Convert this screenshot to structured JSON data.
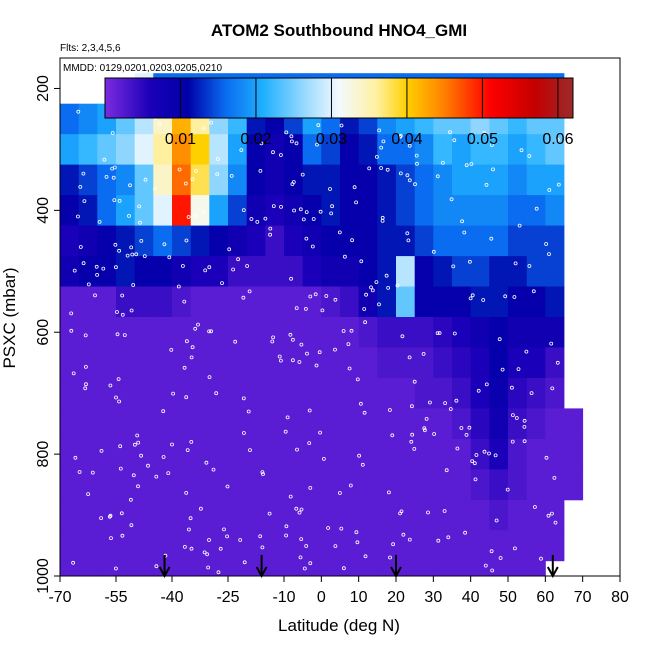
{
  "chart_data": {
    "type": "heatmap",
    "title": "ATOM2 Southbound HNO4_GMI",
    "flights_note": "Flts: 2,3,4,5,6",
    "dates_note": "MMDD: 0129,0201,0203,0205,0210",
    "xlabel": "Latitude (deg N)",
    "ylabel": "PSXC (mbar)",
    "xlim": [
      -70,
      80
    ],
    "ylim": [
      1000,
      150
    ],
    "y_reversed": true,
    "x_ticks": [
      -70,
      -55,
      -40,
      -25,
      -10,
      0,
      10,
      20,
      30,
      40,
      50,
      60,
      70,
      80
    ],
    "x_tick_labels": [
      "-70",
      "-55",
      "-40",
      "-25",
      "-10",
      "0",
      "10",
      "20",
      "30",
      "40",
      "50",
      "60",
      "70",
      "80"
    ],
    "y_ticks": [
      200,
      400,
      600,
      800,
      1000
    ],
    "y_tick_labels": [
      "200",
      "400",
      "600",
      "800",
      "1000"
    ],
    "colorbar": {
      "range": [
        0.0,
        0.062
      ],
      "ticks": [
        0.01,
        0.02,
        0.03,
        0.04,
        0.05,
        0.06
      ],
      "tick_labels": [
        "0.01",
        "0.02",
        "0.03",
        "0.04",
        "0.05",
        "0.06"
      ],
      "color_stops": [
        {
          "v": 0.0,
          "c": "#7b2be0"
        },
        {
          "v": 0.006,
          "c": "#1a00b8"
        },
        {
          "v": 0.011,
          "c": "#0000a8"
        },
        {
          "v": 0.016,
          "c": "#0a6cf0"
        },
        {
          "v": 0.021,
          "c": "#1fb0ff"
        },
        {
          "v": 0.026,
          "c": "#8fd6ff"
        },
        {
          "v": 0.031,
          "c": "#f4faff"
        },
        {
          "v": 0.036,
          "c": "#fff0a0"
        },
        {
          "v": 0.04,
          "c": "#ffd000"
        },
        {
          "v": 0.045,
          "c": "#ff7f00"
        },
        {
          "v": 0.051,
          "c": "#ff0000"
        },
        {
          "v": 0.057,
          "c": "#c40000"
        },
        {
          "v": 0.062,
          "c": "#9b2a2a"
        }
      ]
    },
    "pressure_levels": [
      200,
      250,
      300,
      350,
      400,
      450,
      500,
      550,
      600,
      650,
      700,
      750,
      800,
      850,
      900,
      950,
      1000
    ],
    "lat_bins": [
      -67.5,
      -62.5,
      -57.5,
      -52.5,
      -47.5,
      -42.5,
      -37.5,
      -32.5,
      -27.5,
      -22.5,
      -17.5,
      -12.5,
      -7.5,
      -2.5,
      2.5,
      7.5,
      12.5,
      17.5,
      22.5,
      27.5,
      32.5,
      37.5,
      42.5,
      47.5,
      52.5,
      57.5,
      62.5,
      67.5
    ],
    "values": [
      [
        null,
        null,
        null,
        null,
        0.03,
        0.016,
        0.016,
        0.016,
        0.016,
        0.016,
        0.016,
        0.016,
        0.016,
        0.016,
        0.016,
        0.016,
        0.016,
        0.016,
        0.016,
        0.016,
        0.016,
        0.016,
        0.016,
        0.016,
        0.016,
        0.016,
        0.016,
        null
      ],
      [
        0.016,
        0.018,
        0.02,
        0.024,
        0.028,
        0.034,
        0.042,
        0.036,
        0.026,
        0.022,
        0.012,
        0.01,
        0.014,
        0.02,
        0.016,
        0.012,
        0.014,
        0.018,
        0.02,
        0.022,
        0.024,
        0.024,
        0.026,
        0.024,
        0.022,
        0.024,
        0.024,
        null
      ],
      [
        0.02,
        0.022,
        0.024,
        0.026,
        0.03,
        0.036,
        0.044,
        0.04,
        0.028,
        0.02,
        0.01,
        0.008,
        0.01,
        0.016,
        0.014,
        0.01,
        0.012,
        0.016,
        0.016,
        0.018,
        0.022,
        0.02,
        0.022,
        0.022,
        0.02,
        0.022,
        0.024,
        null
      ],
      [
        0.012,
        0.014,
        0.016,
        0.018,
        0.024,
        0.034,
        0.046,
        0.038,
        0.026,
        0.018,
        0.01,
        0.008,
        0.01,
        0.012,
        0.012,
        0.01,
        0.01,
        0.012,
        0.014,
        0.016,
        0.018,
        0.02,
        0.02,
        0.02,
        0.018,
        0.02,
        0.02,
        null
      ],
      [
        0.01,
        0.012,
        0.016,
        0.02,
        0.024,
        0.03,
        0.05,
        0.032,
        0.02,
        0.014,
        0.008,
        0.006,
        0.008,
        0.01,
        0.012,
        0.01,
        0.01,
        0.012,
        0.014,
        0.016,
        0.018,
        0.018,
        0.018,
        0.018,
        0.016,
        0.016,
        0.018,
        null
      ],
      [
        0.006,
        0.008,
        0.01,
        0.012,
        0.014,
        0.016,
        0.014,
        0.012,
        0.01,
        0.008,
        0.006,
        0.004,
        0.006,
        0.008,
        0.01,
        0.01,
        0.01,
        0.012,
        0.012,
        0.014,
        0.016,
        0.016,
        0.016,
        0.016,
        0.014,
        0.014,
        0.014,
        null
      ],
      [
        0.008,
        0.01,
        0.01,
        0.012,
        0.01,
        0.01,
        0.008,
        0.006,
        0.006,
        0.004,
        0.004,
        0.004,
        0.004,
        0.006,
        0.008,
        0.008,
        0.01,
        0.012,
        0.028,
        0.01,
        0.012,
        0.014,
        0.014,
        0.012,
        0.012,
        0.014,
        0.014,
        null
      ],
      [
        0.002,
        0.002,
        0.002,
        0.004,
        0.004,
        0.004,
        0.003,
        0.002,
        0.002,
        0.002,
        0.002,
        0.002,
        0.002,
        0.002,
        0.003,
        0.004,
        0.008,
        0.012,
        0.024,
        0.01,
        0.01,
        0.01,
        0.012,
        0.012,
        0.01,
        0.01,
        0.012,
        null
      ],
      [
        0.002,
        0.002,
        0.002,
        0.002,
        0.002,
        0.002,
        0.002,
        0.002,
        0.002,
        0.002,
        0.002,
        0.002,
        0.002,
        0.002,
        0.002,
        0.002,
        0.003,
        0.004,
        0.004,
        0.004,
        0.005,
        0.006,
        0.008,
        0.01,
        0.008,
        0.008,
        0.008,
        null
      ],
      [
        0.002,
        0.002,
        0.002,
        0.002,
        0.002,
        0.002,
        0.002,
        0.002,
        0.002,
        0.002,
        0.002,
        0.002,
        0.002,
        0.002,
        0.002,
        0.002,
        0.002,
        0.003,
        0.003,
        0.003,
        0.004,
        0.005,
        0.006,
        0.01,
        0.006,
        0.006,
        0.004,
        null
      ],
      [
        0.002,
        0.002,
        0.002,
        0.002,
        0.002,
        0.002,
        0.002,
        0.002,
        0.002,
        0.002,
        0.002,
        0.002,
        0.002,
        0.002,
        0.002,
        0.002,
        0.002,
        0.002,
        0.002,
        0.003,
        0.003,
        0.004,
        0.006,
        0.009,
        0.005,
        0.004,
        0.003,
        null
      ],
      [
        0.002,
        0.002,
        0.002,
        0.002,
        0.002,
        0.002,
        0.002,
        0.002,
        0.002,
        0.002,
        0.002,
        0.002,
        0.002,
        0.002,
        0.002,
        0.002,
        0.002,
        0.002,
        0.002,
        0.002,
        0.002,
        0.003,
        0.005,
        0.008,
        0.004,
        0.003,
        0.002,
        0.002
      ],
      [
        0.002,
        0.002,
        0.002,
        0.002,
        0.002,
        0.002,
        0.002,
        0.002,
        0.002,
        0.002,
        0.002,
        0.002,
        0.002,
        0.002,
        0.002,
        0.002,
        0.002,
        0.002,
        0.002,
        0.002,
        0.002,
        0.002,
        0.004,
        0.006,
        0.003,
        0.002,
        0.002,
        0.002
      ],
      [
        0.002,
        0.002,
        0.002,
        0.002,
        0.002,
        0.002,
        0.002,
        0.002,
        0.002,
        0.002,
        0.002,
        0.002,
        0.002,
        0.002,
        0.002,
        0.002,
        0.002,
        0.002,
        0.002,
        0.002,
        0.002,
        0.002,
        0.003,
        0.004,
        0.003,
        0.002,
        0.002,
        0.002
      ],
      [
        0.002,
        0.002,
        0.002,
        0.002,
        0.002,
        0.002,
        0.002,
        0.002,
        0.002,
        0.002,
        0.002,
        0.002,
        0.002,
        0.002,
        0.002,
        0.002,
        0.002,
        0.002,
        0.002,
        0.002,
        0.002,
        0.002,
        0.002,
        0.003,
        0.002,
        0.002,
        0.002,
        null
      ],
      [
        0.002,
        0.002,
        0.002,
        0.002,
        0.002,
        0.002,
        0.002,
        0.002,
        0.002,
        0.002,
        0.002,
        0.002,
        0.002,
        0.002,
        0.002,
        0.002,
        0.002,
        0.002,
        0.002,
        0.002,
        0.002,
        0.002,
        0.002,
        0.002,
        0.002,
        0.002,
        0.002,
        null
      ],
      [
        0.002,
        0.002,
        0.002,
        0.002,
        0.002,
        0.002,
        0.002,
        0.002,
        0.002,
        0.002,
        0.002,
        0.002,
        0.002,
        0.002,
        0.002,
        0.002,
        0.002,
        0.002,
        0.002,
        0.002,
        0.002,
        0.002,
        0.002,
        0.002,
        0.002,
        0.002,
        null,
        null
      ]
    ],
    "arrows_latitude": [
      -42,
      -16,
      20,
      62
    ],
    "observation_marker_color": "#ffffff"
  }
}
